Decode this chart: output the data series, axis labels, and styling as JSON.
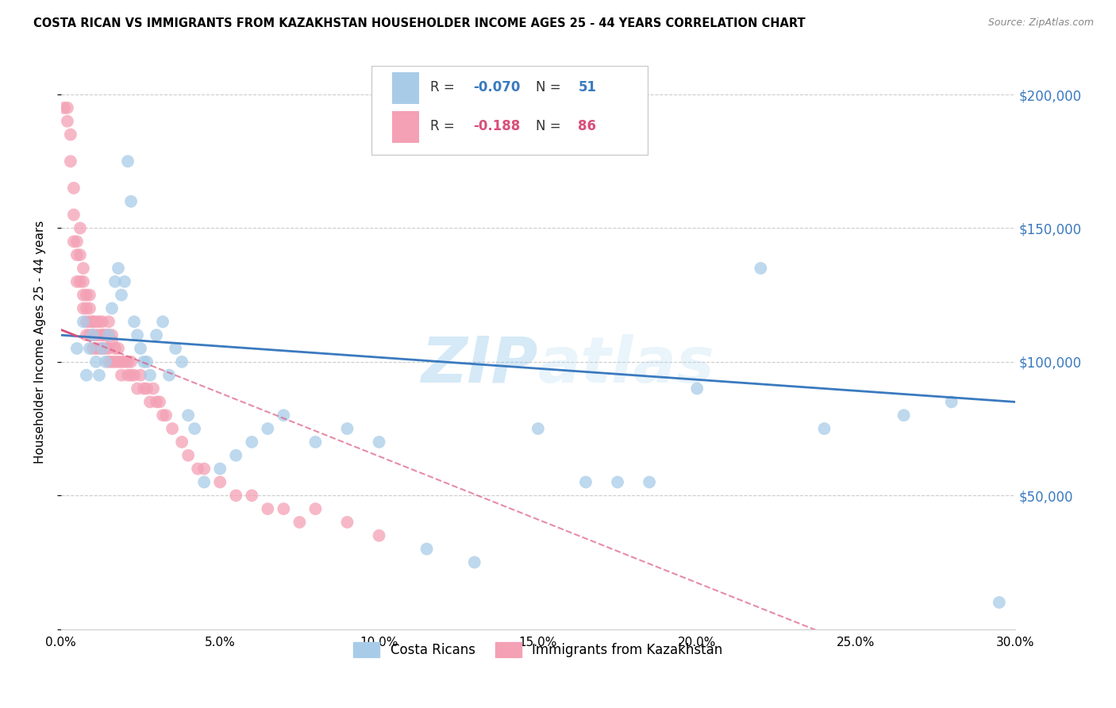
{
  "title": "COSTA RICAN VS IMMIGRANTS FROM KAZAKHSTAN HOUSEHOLDER INCOME AGES 25 - 44 YEARS CORRELATION CHART",
  "source": "Source: ZipAtlas.com",
  "ylabel": "Householder Income Ages 25 - 44 years",
  "xmin": 0.0,
  "xmax": 0.3,
  "ymin": 0,
  "ymax": 215000,
  "yticks": [
    0,
    50000,
    100000,
    150000,
    200000
  ],
  "ytick_labels": [
    "",
    "$50,000",
    "$100,000",
    "$150,000",
    "$200,000"
  ],
  "blue_R": -0.07,
  "blue_N": 51,
  "pink_R": -0.188,
  "pink_N": 86,
  "legend_label_blue": "Costa Ricans",
  "legend_label_pink": "Immigrants from Kazakhstan",
  "watermark": "ZIPatlas",
  "blue_color": "#a8cce8",
  "pink_color": "#f4a0b5",
  "blue_line_color": "#3a7abf",
  "pink_line_color": "#d94f7a",
  "blue_scatter_x": [
    0.005,
    0.007,
    0.008,
    0.009,
    0.01,
    0.011,
    0.012,
    0.013,
    0.014,
    0.015,
    0.016,
    0.017,
    0.018,
    0.019,
    0.02,
    0.021,
    0.022,
    0.023,
    0.024,
    0.025,
    0.026,
    0.027,
    0.028,
    0.03,
    0.032,
    0.034,
    0.036,
    0.038,
    0.04,
    0.042,
    0.045,
    0.05,
    0.055,
    0.06,
    0.065,
    0.07,
    0.08,
    0.09,
    0.1,
    0.115,
    0.13,
    0.15,
    0.165,
    0.175,
    0.185,
    0.2,
    0.22,
    0.24,
    0.265,
    0.28,
    0.295
  ],
  "blue_scatter_y": [
    105000,
    115000,
    95000,
    105000,
    110000,
    100000,
    95000,
    105000,
    100000,
    110000,
    120000,
    130000,
    135000,
    125000,
    130000,
    175000,
    160000,
    115000,
    110000,
    105000,
    100000,
    100000,
    95000,
    110000,
    115000,
    95000,
    105000,
    100000,
    80000,
    75000,
    55000,
    60000,
    65000,
    70000,
    75000,
    80000,
    70000,
    75000,
    70000,
    30000,
    25000,
    75000,
    55000,
    55000,
    55000,
    90000,
    135000,
    75000,
    80000,
    85000,
    10000
  ],
  "pink_scatter_x": [
    0.001,
    0.002,
    0.002,
    0.003,
    0.003,
    0.004,
    0.004,
    0.004,
    0.005,
    0.005,
    0.005,
    0.006,
    0.006,
    0.006,
    0.007,
    0.007,
    0.007,
    0.007,
    0.008,
    0.008,
    0.008,
    0.008,
    0.009,
    0.009,
    0.009,
    0.009,
    0.01,
    0.01,
    0.01,
    0.01,
    0.011,
    0.011,
    0.011,
    0.012,
    0.012,
    0.012,
    0.013,
    0.013,
    0.013,
    0.013,
    0.014,
    0.014,
    0.014,
    0.015,
    0.015,
    0.015,
    0.015,
    0.016,
    0.016,
    0.016,
    0.017,
    0.017,
    0.018,
    0.018,
    0.019,
    0.019,
    0.02,
    0.021,
    0.021,
    0.022,
    0.022,
    0.023,
    0.024,
    0.025,
    0.026,
    0.027,
    0.028,
    0.029,
    0.03,
    0.031,
    0.032,
    0.033,
    0.035,
    0.038,
    0.04,
    0.043,
    0.045,
    0.05,
    0.055,
    0.06,
    0.065,
    0.07,
    0.075,
    0.08,
    0.09,
    0.1
  ],
  "pink_scatter_y": [
    195000,
    195000,
    190000,
    185000,
    175000,
    165000,
    155000,
    145000,
    145000,
    140000,
    130000,
    150000,
    140000,
    130000,
    135000,
    130000,
    125000,
    120000,
    125000,
    120000,
    115000,
    110000,
    125000,
    120000,
    115000,
    110000,
    115000,
    115000,
    110000,
    105000,
    115000,
    110000,
    105000,
    115000,
    110000,
    105000,
    115000,
    110000,
    110000,
    105000,
    110000,
    110000,
    105000,
    115000,
    110000,
    105000,
    100000,
    110000,
    108000,
    100000,
    105000,
    100000,
    105000,
    100000,
    100000,
    95000,
    100000,
    100000,
    95000,
    100000,
    95000,
    95000,
    90000,
    95000,
    90000,
    90000,
    85000,
    90000,
    85000,
    85000,
    80000,
    80000,
    75000,
    70000,
    65000,
    60000,
    60000,
    55000,
    50000,
    50000,
    45000,
    45000,
    40000,
    45000,
    40000,
    35000
  ]
}
